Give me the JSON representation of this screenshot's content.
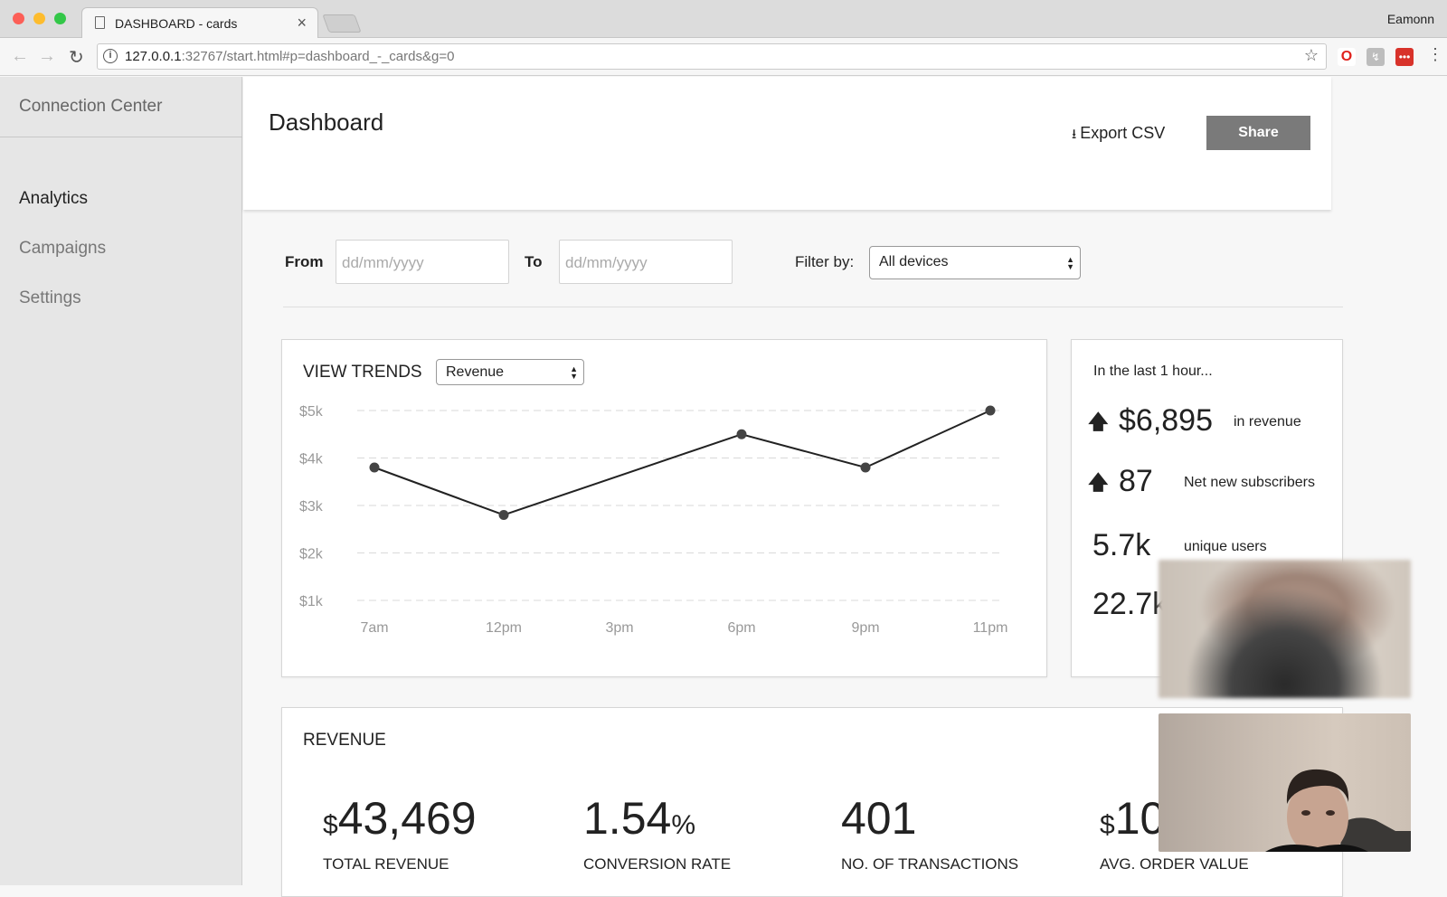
{
  "browser": {
    "tab_title": "DASHBOARD - cards",
    "user": "Eamonn",
    "url_host": "127.0.0.1",
    "url_rest": ":32767/start.html#p=dashboard_-_cards&g=0"
  },
  "sidebar": {
    "title": "Connection Center",
    "items": [
      {
        "label": "Analytics",
        "active": true
      },
      {
        "label": "Campaigns",
        "active": false
      },
      {
        "label": "Settings",
        "active": false
      }
    ]
  },
  "header": {
    "title": "Dashboard",
    "export_label": "Export CSV",
    "share_label": "Share"
  },
  "filters": {
    "from_label": "From",
    "from_placeholder": "dd/mm/yyyy",
    "to_label": "To",
    "to_placeholder": "dd/mm/yyyy",
    "filter_label": "Filter by:",
    "device_value": "All devices"
  },
  "trends": {
    "title": "VIEW TRENDS",
    "metric_value": "Revenue"
  },
  "chart_data": {
    "type": "line",
    "x": [
      "7am",
      "12pm",
      "3pm",
      "6pm",
      "9pm",
      "11pm"
    ],
    "y_ticks": [
      "$5k",
      "$4k",
      "$3k",
      "$2k",
      "$1k"
    ],
    "ylim": [
      1,
      5
    ],
    "grid": true,
    "points": [
      {
        "x": "7am",
        "y": 3.8
      },
      {
        "x": "12pm",
        "y": 2.8
      },
      {
        "x": "6pm",
        "y": 4.5
      },
      {
        "x": "9pm",
        "y": 3.8
      },
      {
        "x": "11pm",
        "y": 5.0
      }
    ]
  },
  "last_hour": {
    "title": "In the last 1 hour...",
    "stats": [
      {
        "value": "$6,895",
        "desc": "in revenue",
        "arrow": "up"
      },
      {
        "value": "87",
        "desc": "Net new subscribers",
        "arrow": "up"
      },
      {
        "value": "5.7k",
        "desc": "unique users"
      },
      {
        "value": "22.7k",
        "desc": ""
      }
    ]
  },
  "revenue": {
    "title": "REVENUE",
    "kpis": [
      {
        "prefix": "$",
        "value": "43,469",
        "suffix": "",
        "label": "TOTAL REVENUE"
      },
      {
        "prefix": "",
        "value": "1.54",
        "suffix": "%",
        "label": "CONVERSION RATE"
      },
      {
        "prefix": "",
        "value": "401",
        "suffix": "",
        "label": "NO. OF TRANSACTIONS"
      },
      {
        "prefix": "$",
        "value": "10",
        "suffix": "",
        "label": "AVG. ORDER VALUE"
      }
    ]
  }
}
